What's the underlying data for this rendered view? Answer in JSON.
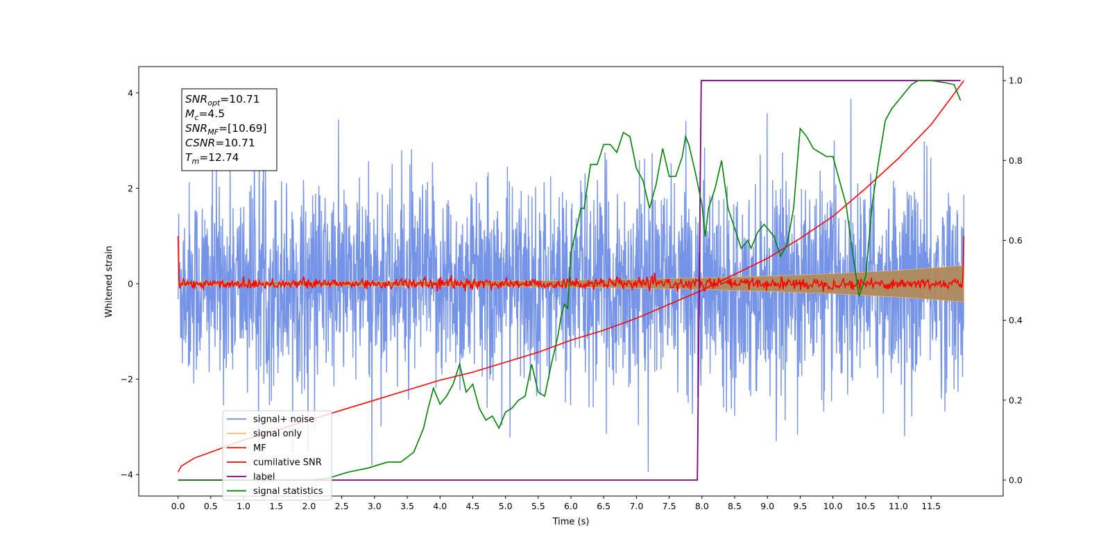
{
  "chart_data": {
    "type": "line",
    "xlabel": "Time (s)",
    "ylabel": "Whitened strain",
    "xlim": [
      -0.6,
      12.6
    ],
    "ylim": [
      -4.45,
      4.55
    ],
    "y2lim": [
      -0.04,
      1.035
    ],
    "xticks": [
      0.0,
      0.5,
      1.0,
      1.5,
      2.0,
      2.5,
      3.0,
      3.5,
      4.0,
      4.5,
      5.0,
      5.5,
      6.0,
      6.5,
      7.0,
      7.5,
      8.0,
      8.5,
      9.0,
      9.5,
      10.0,
      10.5,
      11.0,
      11.5
    ],
    "xtick_labels": [
      "0.0",
      "0.5",
      "1.0",
      "1.5",
      "2.0",
      "2.5",
      "3.0",
      "3.5",
      "4.0",
      "4.5",
      "5.0",
      "5.5",
      "6.0",
      "6.5",
      "7.0",
      "7.5",
      "8.0",
      "8.5",
      "9.0",
      "9.5",
      "10.0",
      "10.5",
      "11.0",
      "11.5"
    ],
    "yticks": [
      -4,
      -2,
      0,
      2,
      4
    ],
    "ytick_labels": [
      "−4",
      "−2",
      "0",
      "2",
      "4"
    ],
    "y2ticks": [
      0.0,
      0.2,
      0.4,
      0.6,
      0.8,
      1.0
    ],
    "y2tick_labels": [
      "0.0",
      "0.2",
      "0.4",
      "0.6",
      "0.8",
      "1.0"
    ],
    "grid": false,
    "legend_position": "lower-left",
    "colors": {
      "signal_noise": "#6f8ee6",
      "signal_only": "#ffb86b",
      "mf": "#ff0000",
      "cumulative_snr": "#ff0000",
      "label": "#800080",
      "signal_statistics": "#008000"
    },
    "annotation": {
      "lines": [
        {
          "sym": "SNR",
          "sub": "opt",
          "val": "=10.71"
        },
        {
          "sym": "M",
          "sub": "c",
          "val": "=4.5"
        },
        {
          "sym": "SNR",
          "sub": "MF",
          "val": "=[10.69]"
        },
        {
          "sym": "CSNR",
          "sub": "",
          "val": "=10.71"
        },
        {
          "sym": "T",
          "sub": "m",
          "val": "=12.74"
        }
      ]
    },
    "series": [
      {
        "name": "signal+ noise",
        "axis": "left",
        "description": "whitened noise, amplitude ~ +/-2.5, peaks to ~4.1, trough to ~ -4.05",
        "t_range": [
          0,
          12.0
        ]
      },
      {
        "name": "signal only",
        "axis": "left",
        "envelope": {
          "t": [
            0,
            4,
            6,
            8,
            9,
            10,
            11,
            12
          ],
          "amp": [
            0.04,
            0.05,
            0.07,
            0.12,
            0.16,
            0.21,
            0.28,
            0.38
          ]
        }
      },
      {
        "name": "MF",
        "axis": "left",
        "description": "matched filter output around 0, ~ +/-0.15, spikes to 1.0 at edges",
        "t_range": [
          0,
          12.0
        ]
      },
      {
        "name": "cumilative SNR",
        "axis": "right",
        "points": [
          [
            0.0,
            0.02
          ],
          [
            0.05,
            0.035
          ],
          [
            0.25,
            0.055
          ],
          [
            0.5,
            0.07
          ],
          [
            1.0,
            0.1
          ],
          [
            1.5,
            0.125
          ],
          [
            2.0,
            0.15
          ],
          [
            2.5,
            0.175
          ],
          [
            3.0,
            0.2
          ],
          [
            3.5,
            0.225
          ],
          [
            4.0,
            0.25
          ],
          [
            4.5,
            0.27
          ],
          [
            5.0,
            0.295
          ],
          [
            5.5,
            0.32
          ],
          [
            6.0,
            0.35
          ],
          [
            6.5,
            0.375
          ],
          [
            7.0,
            0.405
          ],
          [
            7.5,
            0.44
          ],
          [
            8.0,
            0.475
          ],
          [
            8.5,
            0.515
          ],
          [
            9.0,
            0.555
          ],
          [
            9.5,
            0.605
          ],
          [
            10.0,
            0.66
          ],
          [
            10.5,
            0.73
          ],
          [
            11.0,
            0.805
          ],
          [
            11.5,
            0.89
          ],
          [
            12.0,
            1.0
          ]
        ]
      },
      {
        "name": "label",
        "axis": "right",
        "points": [
          [
            0.0,
            0.0
          ],
          [
            7.93,
            0.0
          ],
          [
            7.99,
            1.0
          ],
          [
            11.95,
            1.0
          ]
        ]
      },
      {
        "name": "signal statistics",
        "axis": "right",
        "points": [
          [
            0.0,
            0.0
          ],
          [
            1.0,
            0.0
          ],
          [
            1.5,
            0.0
          ],
          [
            2.0,
            0.0
          ],
          [
            2.3,
            0.005
          ],
          [
            2.6,
            0.02
          ],
          [
            2.9,
            0.03
          ],
          [
            3.0,
            0.035
          ],
          [
            3.2,
            0.045
          ],
          [
            3.4,
            0.045
          ],
          [
            3.6,
            0.07
          ],
          [
            3.75,
            0.13
          ],
          [
            3.82,
            0.18
          ],
          [
            3.9,
            0.23
          ],
          [
            4.0,
            0.19
          ],
          [
            4.1,
            0.21
          ],
          [
            4.2,
            0.24
          ],
          [
            4.3,
            0.29
          ],
          [
            4.4,
            0.22
          ],
          [
            4.5,
            0.24
          ],
          [
            4.6,
            0.18
          ],
          [
            4.7,
            0.15
          ],
          [
            4.8,
            0.16
          ],
          [
            4.9,
            0.13
          ],
          [
            5.0,
            0.17
          ],
          [
            5.1,
            0.18
          ],
          [
            5.2,
            0.2
          ],
          [
            5.3,
            0.21
          ],
          [
            5.4,
            0.29
          ],
          [
            5.5,
            0.22
          ],
          [
            5.6,
            0.21
          ],
          [
            5.7,
            0.29
          ],
          [
            5.8,
            0.36
          ],
          [
            5.85,
            0.41
          ],
          [
            5.9,
            0.44
          ],
          [
            5.95,
            0.43
          ],
          [
            6.0,
            0.57
          ],
          [
            6.1,
            0.64
          ],
          [
            6.15,
            0.68
          ],
          [
            6.2,
            0.68
          ],
          [
            6.3,
            0.79
          ],
          [
            6.4,
            0.79
          ],
          [
            6.5,
            0.84
          ],
          [
            6.6,
            0.84
          ],
          [
            6.7,
            0.82
          ],
          [
            6.8,
            0.87
          ],
          [
            6.9,
            0.86
          ],
          [
            7.0,
            0.78
          ],
          [
            7.1,
            0.75
          ],
          [
            7.2,
            0.68
          ],
          [
            7.3,
            0.74
          ],
          [
            7.4,
            0.83
          ],
          [
            7.5,
            0.76
          ],
          [
            7.6,
            0.76
          ],
          [
            7.7,
            0.81
          ],
          [
            7.75,
            0.86
          ],
          [
            7.8,
            0.84
          ],
          [
            7.9,
            0.77
          ],
          [
            8.0,
            0.69
          ],
          [
            8.05,
            0.61
          ],
          [
            8.1,
            0.68
          ],
          [
            8.2,
            0.73
          ],
          [
            8.3,
            0.8
          ],
          [
            8.4,
            0.68
          ],
          [
            8.5,
            0.63
          ],
          [
            8.6,
            0.58
          ],
          [
            8.7,
            0.6
          ],
          [
            8.75,
            0.58
          ],
          [
            8.85,
            0.62
          ],
          [
            8.95,
            0.64
          ],
          [
            9.0,
            0.63
          ],
          [
            9.1,
            0.61
          ],
          [
            9.2,
            0.56
          ],
          [
            9.3,
            0.59
          ],
          [
            9.4,
            0.68
          ],
          [
            9.5,
            0.88
          ],
          [
            9.6,
            0.86
          ],
          [
            9.7,
            0.83
          ],
          [
            9.8,
            0.82
          ],
          [
            9.9,
            0.81
          ],
          [
            10.0,
            0.81
          ],
          [
            10.1,
            0.75
          ],
          [
            10.2,
            0.69
          ],
          [
            10.3,
            0.57
          ],
          [
            10.4,
            0.46
          ],
          [
            10.5,
            0.51
          ],
          [
            10.6,
            0.69
          ],
          [
            10.7,
            0.8
          ],
          [
            10.8,
            0.9
          ],
          [
            10.9,
            0.93
          ],
          [
            11.0,
            0.95
          ],
          [
            11.1,
            0.97
          ],
          [
            11.2,
            0.99
          ],
          [
            11.3,
            1.0
          ],
          [
            11.5,
            1.0
          ],
          [
            11.7,
            0.995
          ],
          [
            11.85,
            0.99
          ],
          [
            11.95,
            0.95
          ]
        ]
      }
    ]
  }
}
